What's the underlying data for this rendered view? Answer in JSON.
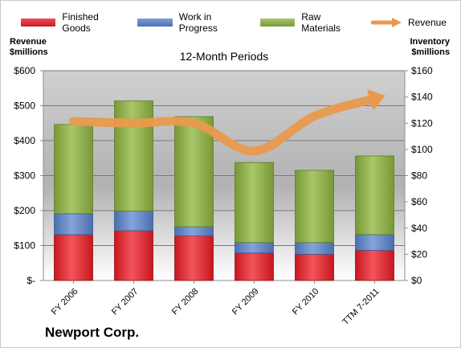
{
  "chart_data": {
    "type": "bar",
    "title": "",
    "subtitle": "12-Month Periods",
    "company": "Newport Corp.",
    "categories": [
      "FY 2006",
      "FY 2007",
      "FY 2008",
      "FY 2009",
      "FY 2010",
      "TTM 7-2011"
    ],
    "left_axis": {
      "title_line1": "Revenue",
      "title_line2": "$millions",
      "range": [
        0,
        600
      ],
      "ticks": [
        0,
        100,
        200,
        300,
        400,
        500,
        600
      ],
      "tick_labels": [
        "$-",
        "$100",
        "$200",
        "$300",
        "$400",
        "$500",
        "$600"
      ]
    },
    "right_axis": {
      "title_line1": "Inventory",
      "title_line2": "$millions",
      "range": [
        0,
        160
      ],
      "ticks": [
        0,
        20,
        40,
        60,
        80,
        100,
        120,
        140,
        160
      ],
      "tick_labels": [
        "$0",
        "$20",
        "$40",
        "$60",
        "$80",
        "$100",
        "$120",
        "$140",
        "$160"
      ]
    },
    "series": [
      {
        "name": "Finished Goods",
        "kind": "stacked-bar",
        "axis": "right",
        "color": "#e8242c",
        "values": [
          35,
          38,
          34,
          21,
          20,
          23
        ]
      },
      {
        "name": "Work in Progress",
        "kind": "stacked-bar",
        "axis": "right",
        "color": "#5b83c4",
        "values": [
          16,
          15,
          7,
          8,
          9,
          12
        ]
      },
      {
        "name": "Raw Materials",
        "kind": "stacked-bar",
        "axis": "right",
        "color": "#8fb04a",
        "values": [
          68,
          84,
          84,
          61,
          55,
          60
        ]
      },
      {
        "name": "Revenue",
        "kind": "line",
        "axis": "left",
        "color": "#e99a4e",
        "values": [
          455,
          450,
          450,
          370,
          470,
          520
        ]
      }
    ],
    "grid": true,
    "legend_position": "top"
  }
}
